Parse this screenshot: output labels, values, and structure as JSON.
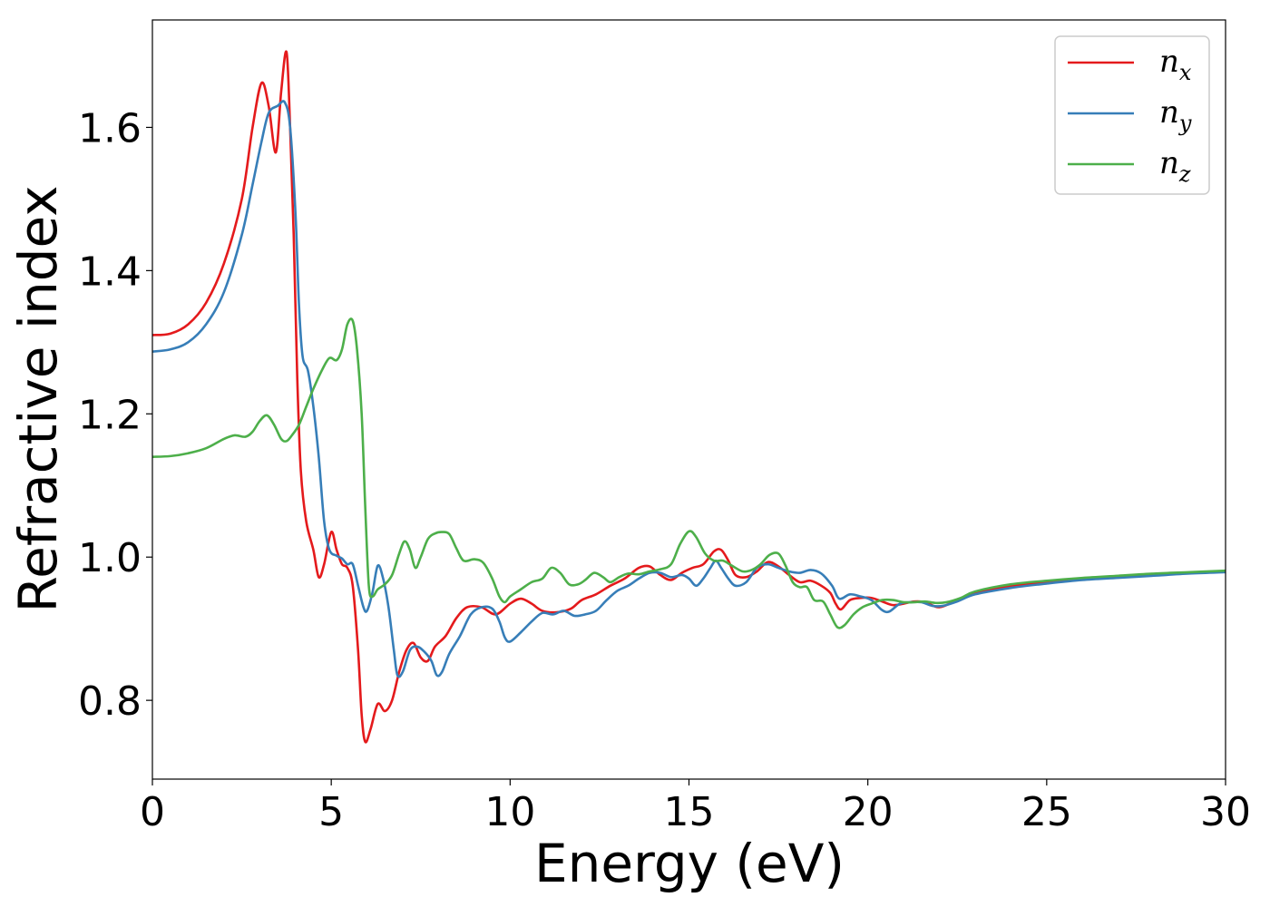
{
  "chart_data": {
    "type": "line",
    "xlabel": "Energy (eV)",
    "ylabel": "Refractive index",
    "xlim": [
      0,
      30
    ],
    "ylim": [
      0.69,
      1.75
    ],
    "xticks": [
      0,
      5,
      10,
      15,
      20,
      25,
      30
    ],
    "xtick_labels": [
      "0",
      "5",
      "10",
      "15",
      "20",
      "25",
      "30"
    ],
    "yticks": [
      0.8,
      1.0,
      1.2,
      1.4,
      1.6
    ],
    "ytick_labels": [
      "0.8",
      "1.0",
      "1.2",
      "1.4",
      "1.6"
    ],
    "grid": false,
    "legend_position": "top-right",
    "series": [
      {
        "name": "n",
        "subscript": "x",
        "color": "#e41a1c",
        "points": [
          [
            0,
            1.31
          ],
          [
            0.5,
            1.312
          ],
          [
            1,
            1.325
          ],
          [
            1.5,
            1.355
          ],
          [
            2,
            1.41
          ],
          [
            2.5,
            1.5
          ],
          [
            2.8,
            1.6
          ],
          [
            3.05,
            1.662
          ],
          [
            3.25,
            1.63
          ],
          [
            3.45,
            1.565
          ],
          [
            3.6,
            1.65
          ],
          [
            3.75,
            1.705
          ],
          [
            3.85,
            1.6
          ],
          [
            3.95,
            1.45
          ],
          [
            4.05,
            1.25
          ],
          [
            4.15,
            1.12
          ],
          [
            4.3,
            1.05
          ],
          [
            4.5,
            1.01
          ],
          [
            4.65,
            0.972
          ],
          [
            4.8,
            0.99
          ],
          [
            5.0,
            1.035
          ],
          [
            5.15,
            1.01
          ],
          [
            5.3,
            0.99
          ],
          [
            5.45,
            0.985
          ],
          [
            5.6,
            0.96
          ],
          [
            5.75,
            0.87
          ],
          [
            5.85,
            0.78
          ],
          [
            5.95,
            0.742
          ],
          [
            6.1,
            0.76
          ],
          [
            6.3,
            0.795
          ],
          [
            6.5,
            0.785
          ],
          [
            6.7,
            0.8
          ],
          [
            6.9,
            0.84
          ],
          [
            7.1,
            0.87
          ],
          [
            7.3,
            0.88
          ],
          [
            7.5,
            0.86
          ],
          [
            7.7,
            0.855
          ],
          [
            7.9,
            0.875
          ],
          [
            8.2,
            0.89
          ],
          [
            8.5,
            0.915
          ],
          [
            8.8,
            0.93
          ],
          [
            9.2,
            0.93
          ],
          [
            9.6,
            0.92
          ],
          [
            10,
            0.935
          ],
          [
            10.3,
            0.942
          ],
          [
            10.6,
            0.935
          ],
          [
            10.9,
            0.925
          ],
          [
            11.3,
            0.923
          ],
          [
            11.7,
            0.928
          ],
          [
            12,
            0.94
          ],
          [
            12.4,
            0.948
          ],
          [
            12.8,
            0.96
          ],
          [
            13.2,
            0.97
          ],
          [
            13.6,
            0.985
          ],
          [
            13.9,
            0.987
          ],
          [
            14.2,
            0.975
          ],
          [
            14.5,
            0.968
          ],
          [
            14.8,
            0.978
          ],
          [
            15.1,
            0.985
          ],
          [
            15.4,
            0.99
          ],
          [
            15.7,
            1.008
          ],
          [
            15.9,
            1.01
          ],
          [
            16.1,
            0.995
          ],
          [
            16.3,
            0.975
          ],
          [
            16.6,
            0.972
          ],
          [
            16.9,
            0.98
          ],
          [
            17.2,
            0.993
          ],
          [
            17.5,
            0.987
          ],
          [
            17.8,
            0.975
          ],
          [
            18.1,
            0.965
          ],
          [
            18.4,
            0.967
          ],
          [
            18.7,
            0.96
          ],
          [
            18.95,
            0.95
          ],
          [
            19.1,
            0.935
          ],
          [
            19.25,
            0.927
          ],
          [
            19.5,
            0.94
          ],
          [
            19.8,
            0.943
          ],
          [
            20.1,
            0.943
          ],
          [
            20.4,
            0.938
          ],
          [
            20.7,
            0.933
          ],
          [
            21,
            0.935
          ],
          [
            21.3,
            0.938
          ],
          [
            21.6,
            0.937
          ],
          [
            22,
            0.93
          ],
          [
            22.5,
            0.94
          ],
          [
            23,
            0.95
          ],
          [
            24,
            0.96
          ],
          [
            25,
            0.965
          ],
          [
            26,
            0.97
          ],
          [
            27,
            0.973
          ],
          [
            28,
            0.976
          ],
          [
            29,
            0.978
          ],
          [
            30,
            0.98
          ]
        ]
      },
      {
        "name": "n",
        "subscript": "y",
        "color": "#377eb8",
        "points": [
          [
            0,
            1.287
          ],
          [
            0.5,
            1.29
          ],
          [
            1,
            1.3
          ],
          [
            1.5,
            1.325
          ],
          [
            2,
            1.37
          ],
          [
            2.5,
            1.45
          ],
          [
            2.8,
            1.52
          ],
          [
            3.05,
            1.58
          ],
          [
            3.25,
            1.62
          ],
          [
            3.5,
            1.63
          ],
          [
            3.7,
            1.635
          ],
          [
            3.85,
            1.6
          ],
          [
            4.0,
            1.48
          ],
          [
            4.1,
            1.35
          ],
          [
            4.2,
            1.28
          ],
          [
            4.35,
            1.26
          ],
          [
            4.5,
            1.21
          ],
          [
            4.65,
            1.14
          ],
          [
            4.8,
            1.05
          ],
          [
            4.95,
            1.01
          ],
          [
            5.15,
            1.002
          ],
          [
            5.3,
            0.998
          ],
          [
            5.45,
            0.99
          ],
          [
            5.6,
            0.99
          ],
          [
            5.75,
            0.96
          ],
          [
            5.9,
            0.93
          ],
          [
            6.0,
            0.925
          ],
          [
            6.15,
            0.95
          ],
          [
            6.3,
            0.988
          ],
          [
            6.45,
            0.97
          ],
          [
            6.6,
            0.93
          ],
          [
            6.75,
            0.87
          ],
          [
            6.85,
            0.835
          ],
          [
            7.0,
            0.84
          ],
          [
            7.2,
            0.87
          ],
          [
            7.4,
            0.875
          ],
          [
            7.6,
            0.868
          ],
          [
            7.8,
            0.855
          ],
          [
            7.95,
            0.835
          ],
          [
            8.1,
            0.84
          ],
          [
            8.3,
            0.865
          ],
          [
            8.6,
            0.89
          ],
          [
            8.9,
            0.92
          ],
          [
            9.2,
            0.93
          ],
          [
            9.5,
            0.928
          ],
          [
            9.7,
            0.91
          ],
          [
            9.85,
            0.888
          ],
          [
            10,
            0.882
          ],
          [
            10.3,
            0.895
          ],
          [
            10.6,
            0.91
          ],
          [
            10.9,
            0.922
          ],
          [
            11.2,
            0.92
          ],
          [
            11.5,
            0.925
          ],
          [
            11.8,
            0.918
          ],
          [
            12.1,
            0.92
          ],
          [
            12.4,
            0.925
          ],
          [
            12.7,
            0.94
          ],
          [
            13,
            0.953
          ],
          [
            13.3,
            0.96
          ],
          [
            13.6,
            0.97
          ],
          [
            13.9,
            0.978
          ],
          [
            14.2,
            0.978
          ],
          [
            14.5,
            0.972
          ],
          [
            14.8,
            0.975
          ],
          [
            15.0,
            0.97
          ],
          [
            15.2,
            0.96
          ],
          [
            15.4,
            0.97
          ],
          [
            15.6,
            0.985
          ],
          [
            15.75,
            0.995
          ],
          [
            15.9,
            0.985
          ],
          [
            16.1,
            0.97
          ],
          [
            16.3,
            0.96
          ],
          [
            16.6,
            0.965
          ],
          [
            16.9,
            0.985
          ],
          [
            17.2,
            0.99
          ],
          [
            17.5,
            0.985
          ],
          [
            17.8,
            0.98
          ],
          [
            18.1,
            0.978
          ],
          [
            18.4,
            0.982
          ],
          [
            18.7,
            0.977
          ],
          [
            19.0,
            0.96
          ],
          [
            19.2,
            0.942
          ],
          [
            19.5,
            0.948
          ],
          [
            19.8,
            0.945
          ],
          [
            20.1,
            0.94
          ],
          [
            20.4,
            0.926
          ],
          [
            20.6,
            0.924
          ],
          [
            20.9,
            0.935
          ],
          [
            21.2,
            0.937
          ],
          [
            21.5,
            0.937
          ],
          [
            21.8,
            0.932
          ],
          [
            22.1,
            0.932
          ],
          [
            22.5,
            0.938
          ],
          [
            23,
            0.948
          ],
          [
            24,
            0.957
          ],
          [
            25,
            0.963
          ],
          [
            26,
            0.968
          ],
          [
            27,
            0.971
          ],
          [
            28,
            0.974
          ],
          [
            29,
            0.977
          ],
          [
            30,
            0.979
          ]
        ]
      },
      {
        "name": "n",
        "subscript": "z",
        "color": "#4daf4a",
        "points": [
          [
            0,
            1.14
          ],
          [
            0.5,
            1.141
          ],
          [
            1,
            1.145
          ],
          [
            1.5,
            1.152
          ],
          [
            2,
            1.165
          ],
          [
            2.3,
            1.17
          ],
          [
            2.6,
            1.168
          ],
          [
            2.8,
            1.175
          ],
          [
            3.0,
            1.19
          ],
          [
            3.2,
            1.198
          ],
          [
            3.4,
            1.185
          ],
          [
            3.6,
            1.165
          ],
          [
            3.75,
            1.162
          ],
          [
            3.9,
            1.17
          ],
          [
            4.1,
            1.185
          ],
          [
            4.3,
            1.21
          ],
          [
            4.5,
            1.235
          ],
          [
            4.75,
            1.262
          ],
          [
            4.95,
            1.278
          ],
          [
            5.15,
            1.275
          ],
          [
            5.3,
            1.29
          ],
          [
            5.45,
            1.325
          ],
          [
            5.6,
            1.33
          ],
          [
            5.72,
            1.29
          ],
          [
            5.85,
            1.2
          ],
          [
            5.95,
            1.07
          ],
          [
            6.05,
            0.96
          ],
          [
            6.15,
            0.945
          ],
          [
            6.3,
            0.955
          ],
          [
            6.5,
            0.962
          ],
          [
            6.7,
            0.975
          ],
          [
            6.9,
            1.005
          ],
          [
            7.05,
            1.022
          ],
          [
            7.2,
            1.01
          ],
          [
            7.35,
            0.985
          ],
          [
            7.5,
            1.0
          ],
          [
            7.7,
            1.025
          ],
          [
            7.9,
            1.033
          ],
          [
            8.1,
            1.035
          ],
          [
            8.3,
            1.032
          ],
          [
            8.5,
            1.012
          ],
          [
            8.7,
            0.995
          ],
          [
            9.0,
            0.997
          ],
          [
            9.25,
            0.992
          ],
          [
            9.5,
            0.97
          ],
          [
            9.7,
            0.945
          ],
          [
            9.85,
            0.937
          ],
          [
            10,
            0.945
          ],
          [
            10.3,
            0.955
          ],
          [
            10.6,
            0.965
          ],
          [
            10.9,
            0.97
          ],
          [
            11.15,
            0.985
          ],
          [
            11.4,
            0.978
          ],
          [
            11.65,
            0.962
          ],
          [
            11.9,
            0.962
          ],
          [
            12.1,
            0.968
          ],
          [
            12.35,
            0.978
          ],
          [
            12.6,
            0.972
          ],
          [
            12.8,
            0.965
          ],
          [
            13.05,
            0.972
          ],
          [
            13.3,
            0.977
          ],
          [
            13.6,
            0.976
          ],
          [
            13.9,
            0.98
          ],
          [
            14.2,
            0.983
          ],
          [
            14.5,
            0.99
          ],
          [
            14.75,
            1.018
          ],
          [
            15.0,
            1.036
          ],
          [
            15.2,
            1.028
          ],
          [
            15.45,
            1.005
          ],
          [
            15.7,
            0.995
          ],
          [
            15.95,
            0.995
          ],
          [
            16.2,
            0.988
          ],
          [
            16.5,
            0.98
          ],
          [
            16.75,
            0.982
          ],
          [
            17.0,
            0.99
          ],
          [
            17.25,
            1.003
          ],
          [
            17.5,
            1.005
          ],
          [
            17.7,
            0.988
          ],
          [
            17.9,
            0.965
          ],
          [
            18.1,
            0.958
          ],
          [
            18.3,
            0.958
          ],
          [
            18.5,
            0.94
          ],
          [
            18.75,
            0.938
          ],
          [
            18.95,
            0.92
          ],
          [
            19.15,
            0.902
          ],
          [
            19.35,
            0.905
          ],
          [
            19.6,
            0.92
          ],
          [
            19.85,
            0.93
          ],
          [
            20.1,
            0.935
          ],
          [
            20.4,
            0.94
          ],
          [
            20.7,
            0.94
          ],
          [
            21.0,
            0.937
          ],
          [
            21.3,
            0.937
          ],
          [
            21.6,
            0.938
          ],
          [
            21.9,
            0.936
          ],
          [
            22.2,
            0.937
          ],
          [
            22.6,
            0.943
          ],
          [
            23,
            0.952
          ],
          [
            24,
            0.962
          ],
          [
            25,
            0.967
          ],
          [
            26,
            0.971
          ],
          [
            27,
            0.974
          ],
          [
            28,
            0.977
          ],
          [
            29,
            0.979
          ],
          [
            30,
            0.981
          ]
        ]
      }
    ]
  }
}
